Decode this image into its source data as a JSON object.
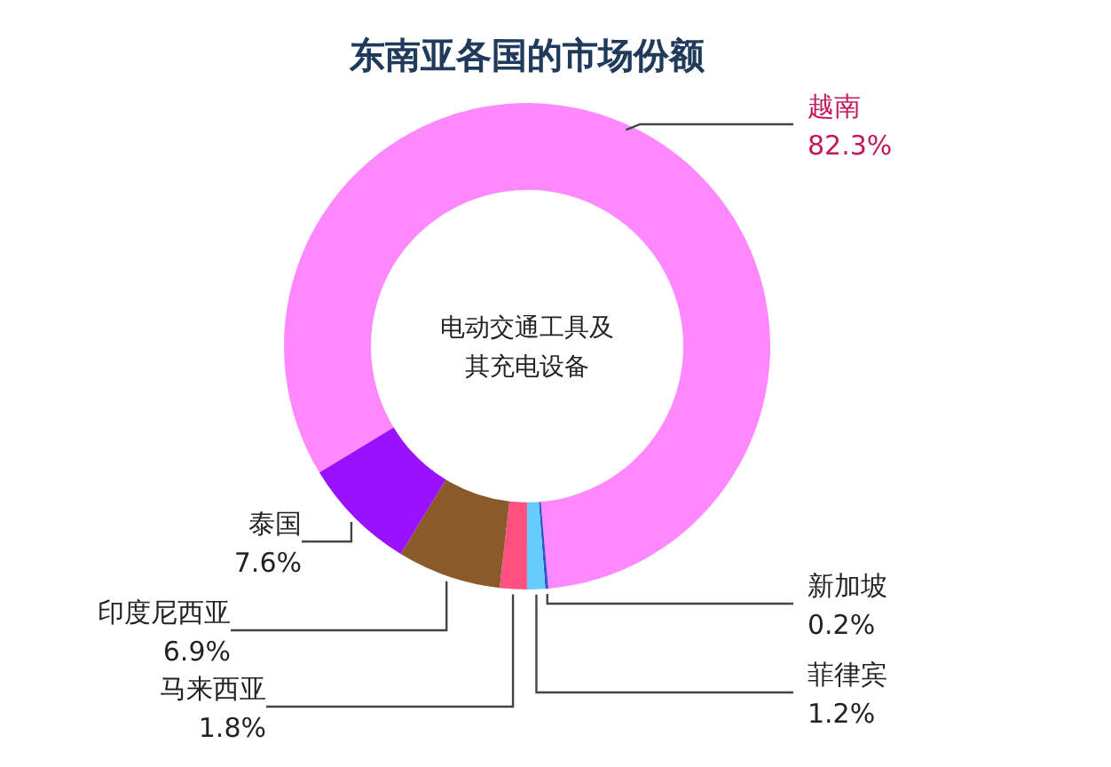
{
  "chart_data": {
    "type": "donut",
    "title": "东南亚各国的市场份额",
    "categories": [
      "越南",
      "新加坡",
      "菲律宾",
      "马来西亚",
      "印度尼西亚",
      "泰国"
    ],
    "values": [
      82.3,
      0.2,
      1.2,
      1.8,
      6.9,
      7.6
    ],
    "value_labels": [
      "82.3%",
      "0.2%",
      "1.2%",
      "1.8%",
      "6.9%",
      "7.6%"
    ],
    "colors": [
      "#ff88ff",
      "#3355cc",
      "#66ccff",
      "#ff5080",
      "#8b5a2b",
      "#9911ff"
    ],
    "annotations": [
      "电动交通工具及",
      "其充电设备"
    ],
    "legend": false
  }
}
